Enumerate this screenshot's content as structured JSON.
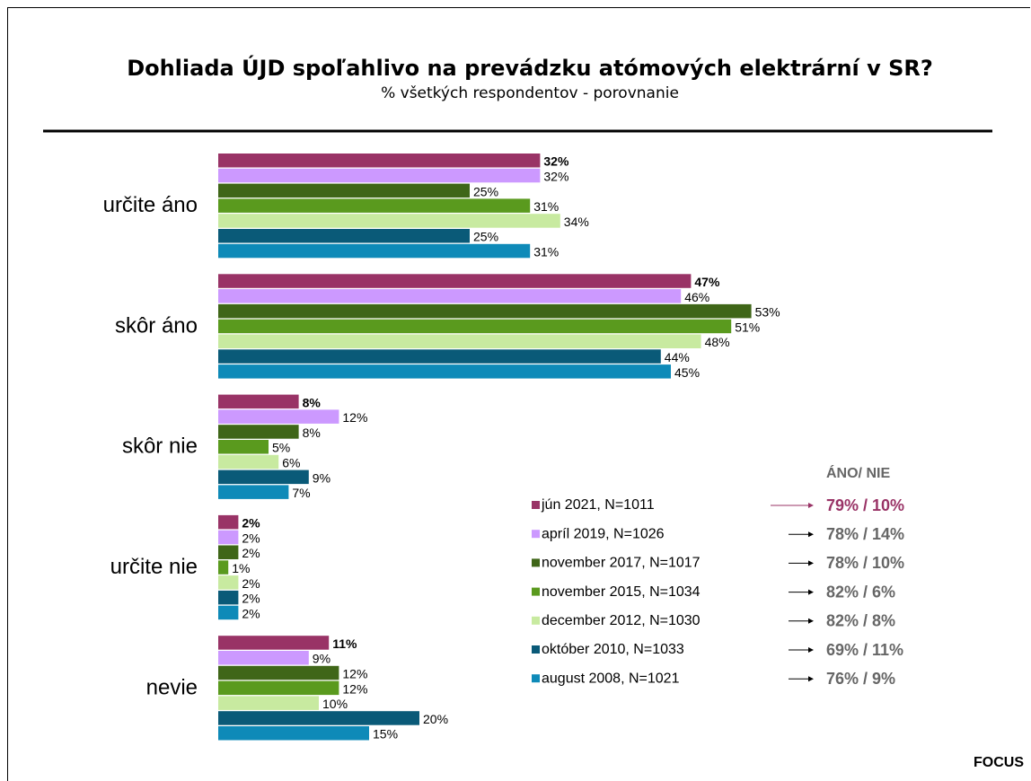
{
  "chart_data": {
    "type": "bar",
    "orientation": "horizontal",
    "title": "Dohliada ÚJD spoľahlivo na prevádzku atómových elektrární v SR?",
    "subtitle": "% všetkých respondentov - porovnanie",
    "categories": [
      "určite áno",
      "skôr áno",
      "skôr nie",
      "určite nie",
      "nevie"
    ],
    "summary_title": "ÁNO/ NIE",
    "source": "FOCUS",
    "series": [
      {
        "name": "jún 2021, N=1011",
        "color": "#993366",
        "values": [
          32,
          47,
          8,
          2,
          11
        ],
        "value_labels": [
          "32%",
          "47%",
          "8%",
          "2%",
          "11%"
        ],
        "summary": "79% / 10%"
      },
      {
        "name": "apríl 2019, N=1026",
        "color": "#cc99ff",
        "values": [
          32,
          46,
          12,
          2,
          9
        ],
        "value_labels": [
          "32%",
          "46%",
          "12%",
          "2%",
          "9%"
        ],
        "summary": "78% / 14%"
      },
      {
        "name": "november 2017, N=1017",
        "color": "#3f6618",
        "values": [
          25,
          53,
          8,
          2,
          12
        ],
        "value_labels": [
          "25%",
          "53%",
          "8%",
          "2%",
          "12%"
        ],
        "summary": "78% / 10%"
      },
      {
        "name": "november 2015, N=1034",
        "color": "#5a9a1e",
        "values": [
          31,
          51,
          5,
          1,
          12
        ],
        "value_labels": [
          "31%",
          "51%",
          "5%",
          "1%",
          "12%"
        ],
        "summary": "82% / 6%"
      },
      {
        "name": "december 2012, N=1030",
        "color": "#c8eaa0",
        "values": [
          34,
          48,
          6,
          2,
          10
        ],
        "value_labels": [
          "34%",
          "48%",
          "6%",
          "2%",
          "10%"
        ],
        "summary": "82% / 8%"
      },
      {
        "name": "október 2010, N=1033",
        "color": "#0a5a78",
        "values": [
          25,
          44,
          9,
          2,
          20
        ],
        "value_labels": [
          "25%",
          "44%",
          "9%",
          "2%",
          "20%"
        ],
        "summary": "69% / 11%"
      },
      {
        "name": "august 2008, N=1021",
        "color": "#0e8ab8",
        "values": [
          31,
          45,
          7,
          2,
          15
        ],
        "value_labels": [
          "31%",
          "45%",
          "7%",
          "2%",
          "15%"
        ],
        "summary": "76% / 9%"
      }
    ]
  }
}
